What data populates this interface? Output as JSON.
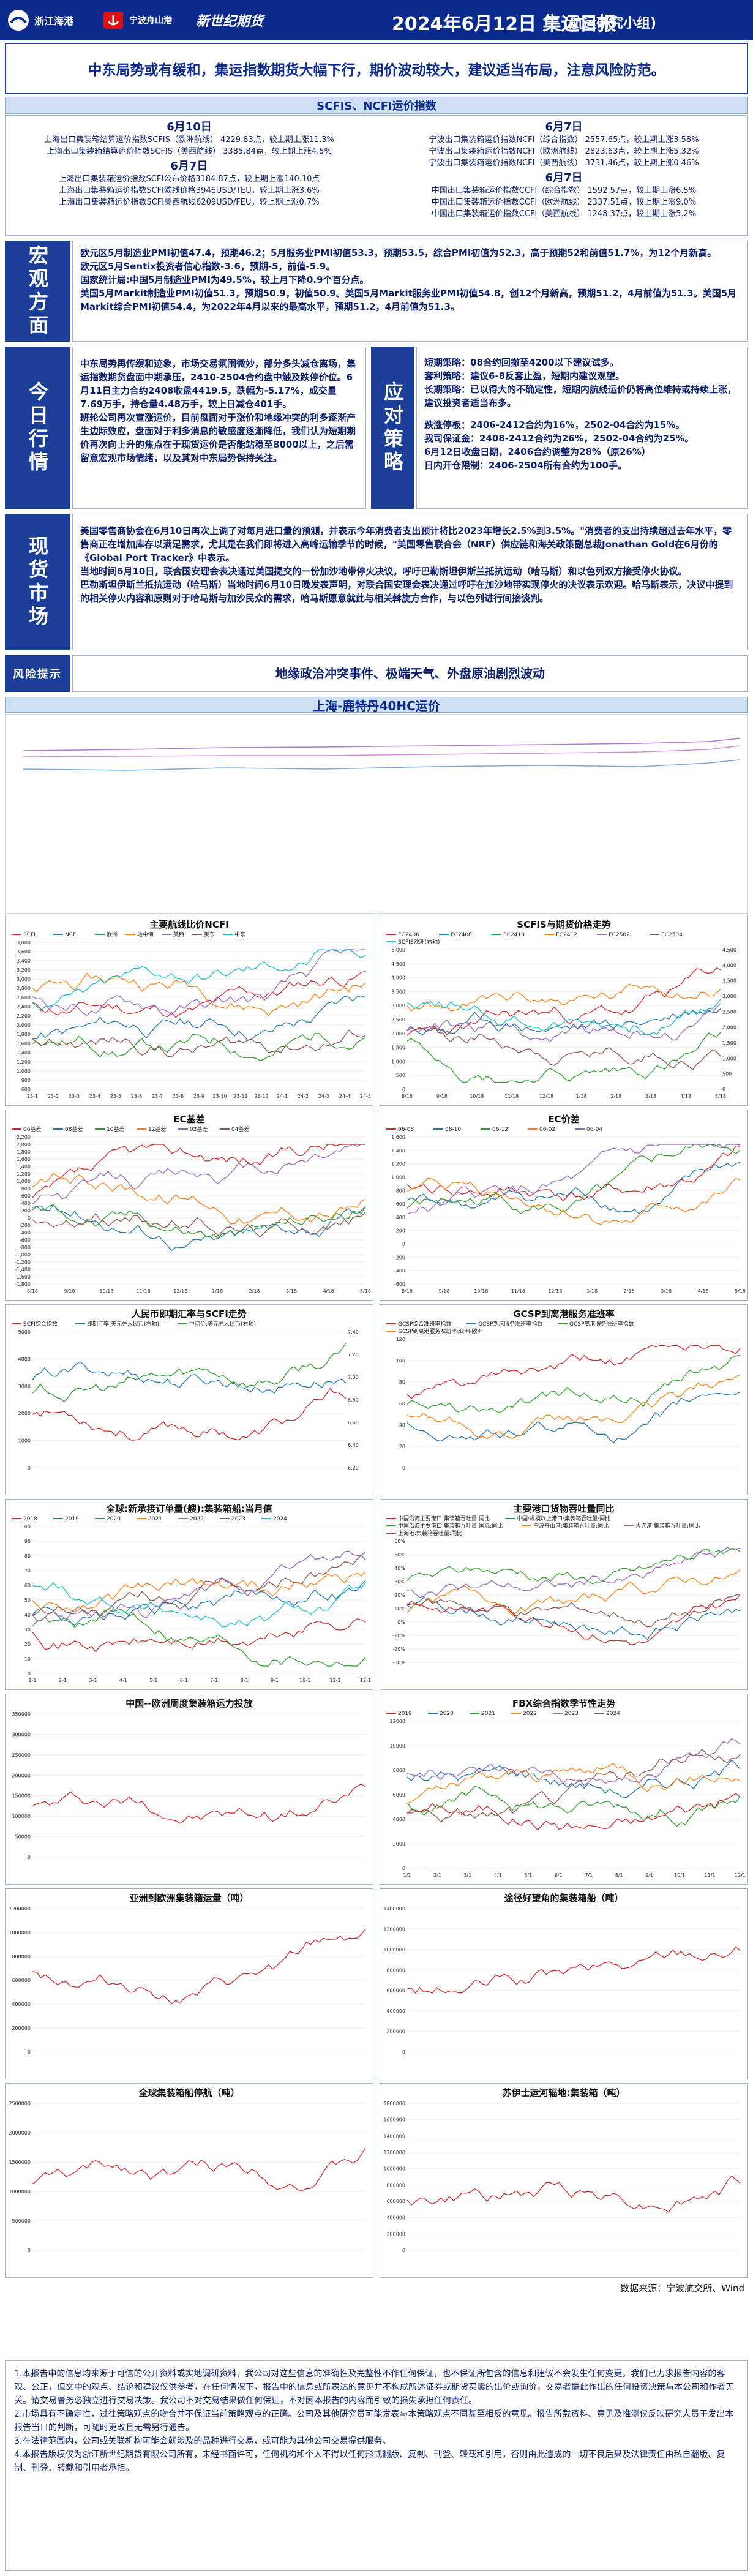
{
  "header": {
    "logo1": "浙江海港",
    "logo2": "宁波舟山港",
    "logo3": "新世纪期货",
    "title": "2024年6月12日 集运日报",
    "subtitle": "(航运研究小组)"
  },
  "headline": "中东局势或有缓和，集运指数期货大幅下行，期价波动较大，建议适当布局，注意风险防范。",
  "scfis_section": {
    "title": "SCFIS、NCFI运价指数",
    "left_date1": "6月10日",
    "left_lines1": [
      "上海出口集装箱结算运价指数SCFIS（欧洲航线） 4229.83点，较上期上涨11.3%",
      "上海出口集装箱结算运价指数SCFIS（美西航线） 3385.84点，较上期上涨4.5%"
    ],
    "left_date2": "6月7日",
    "left_lines2": [
      "上海出口集装箱运价指数SCFI公布价格3184.87点，较上期上涨140.10点",
      "上海出口集装箱运价指数SCFI欧线价格3946USD/TEU，较上期上涨3.6%",
      "上海出口集装箱运价指数SCFI美西航线6209USD/FEU，较上期上涨0.7%"
    ],
    "right_date1": "6月7日",
    "right_lines1": [
      "宁波出口集装箱运价指数NCFI（综合指数） 2557.65点，较上期上涨3.58%",
      "宁波出口集装箱运价指数NCFI（欧洲航线） 2823.63点，较上期上涨5.32%",
      "宁波出口集装箱运价指数NCFI（美西航线） 3731.46点，较上期上涨0.46%"
    ],
    "right_date2": "6月7日",
    "right_lines2": [
      "中国出口集装箱运价指数CCFI（综合指数） 1592.57点，较上期上涨6.5%",
      "中国出口集装箱运价指数CCFI（欧洲航线） 2337.51点，较上期上涨9.0%",
      "中国出口集装箱运价指数CCFI（美西航线） 1248.37点，较上期上涨5.2%"
    ]
  },
  "macro": {
    "label": "宏观方面",
    "lines": [
      "欧元区5月制造业PMI初值47.4，预期46.2；5月服务业PMI初值53.3，预期53.5，综合PMI初值为52.3，高于预期52和前值51.7%，为12个月新高。",
      "欧元区5月Sentix投资者信心指数-3.6，预期-5，前值-5.9。",
      "国家统计局:中国5月制造业PMI为49.5%，较上月下降0.9个百分点。",
      "美国5月Markit制造业PMI初值51.3，预期50.9，初值50.9。美国5月Markit服务业PMI初值54.8，创12个月新高，预期51.2，4月前值为51.3。美国5月Markit综合PMI初值54.4，为2022年4月以来的最高水平，预期51.2，4月前值为51.3。"
    ]
  },
  "today": {
    "label": "今日行情",
    "text": "中东局势再传缓和迹象，市场交易氛围微妙，部分多头减仓离场，集运指数期货盘面中期承压，2410-2504合约盘中触及跌停价位。6月11日主力合约2408收盘4419.5，跌幅为-5.17%，成交量7.69万手，持仓量4.48万手，较上日减仓401手。\n班轮公司再次宣涨运价，目前盘面对于涨价和地缘冲突的利多逐渐产生边际效应，盘面对于利多消息的敏感度逐渐降低，我们认为短期期价再次向上升的焦点在于现货运价是否能站稳至8000以上，之后需留意宏观市场情绪，以及其对中东局势保持关注。"
  },
  "strategy": {
    "label": "应对策略",
    "lines": [
      "短期策略：08合约回撤至4200以下建议试多。",
      "套利策略：建议6-8反套止盈，短期内建议观望。",
      "长期策略：已以得大的不确定性，短期内航线运价仍将高位维持或持续上涨，建议投资者适当布多。",
      "",
      "跌涨停板：2406-2412合约为16%，2502-04合约为15%。",
      "我司保证金：2408-2412合约为26%，2502-04合约为25%。",
      "6月12日收盘日期，2406合约调整为28%（原26%）",
      "日内开仓限制：2406-2504所有合约为100手。"
    ]
  },
  "spot": {
    "label": "现货市场",
    "lines": [
      "美国零售商协会在6月10日再次上调了对每月进口量的预测，并表示今年消费者支出预计将比2023年增长2.5%到3.5%。\"消费者的支出持续超过去年水平，零售商正在增加库存以满足需求，尤其是在我们即将进入高峰运输季节的时候，\"美国零售联合会（NRF）供应链和海关政策副总裁Jonathan Gold在6月份的《Global Port Tracker》中表示。",
      "当地时间6月10日，联合国安理会表决通过美国提交的一份加沙地带停火决议，呼吁巴勒斯坦伊斯兰抵抗运动（哈马斯）和以色列双方接受停火协议。",
      "巴勒斯坦伊斯兰抵抗运动（哈马斯）当地时间6月10日晚发表声明，对联合国安理会表决通过呼吁在加沙地带实现停火的决议表示欢迎。哈马斯表示，决议中提到的相关停火内容和原则对于哈马斯与加沙民众的需求，哈马斯愿意就此与相关斡旋方合作，与以色列进行间接谈判。"
    ]
  },
  "risk": {
    "label": "风险提示",
    "text": "地缘政治冲突事件、极端天气、外盘原油剧烈波动"
  },
  "charts": {
    "shanghai": {
      "title": "上海-鹿特丹40HC运价"
    },
    "ncfi": {
      "title": "主要航线比价NCFI",
      "legend": [
        "SCFI",
        "NCFI",
        "欧洲",
        "地中海",
        "美西",
        "美东",
        "中东"
      ],
      "xticks": [
        "23-1",
        "23-2",
        "23-3",
        "23-4",
        "23-5",
        "23-6",
        "23-7",
        "23-8",
        "23-9",
        "23-10",
        "23-11",
        "23-12",
        "24-1",
        "24-2",
        "24-3",
        "24-4",
        "24-5"
      ],
      "yticks": [
        "3,800",
        "3,600",
        "3,400",
        "3,200",
        "3,000",
        "2,800",
        "2,600",
        "2,400",
        "2,200",
        "2,000",
        "1,800",
        "1,600",
        "1,400",
        "1,200",
        "1,000",
        "800",
        "600"
      ]
    },
    "scfis": {
      "title": "SCFIS与期货价格走势",
      "legend": [
        "EC2406",
        "EC2408",
        "EC2410",
        "EC2412",
        "EC2502",
        "EC2504",
        "SCFIS欧洲(右轴)"
      ],
      "xticks": [
        "8/18",
        "9/18",
        "10/18",
        "11/18",
        "12/18",
        "1/18",
        "2/18",
        "3/18",
        "4/18",
        "5/18"
      ],
      "yticks": [
        "5,000",
        "4,500",
        "4,000",
        "3,500",
        "3,000",
        "2,500",
        "2,000",
        "1,500",
        "1,000",
        "500",
        "0"
      ],
      "yticks2": [
        "4,500",
        "4,000",
        "3,500",
        "3,000",
        "2,500",
        "2,000",
        "1,500",
        "1,000",
        "500",
        "0"
      ]
    },
    "ecbasis": {
      "title": "EC基差",
      "legend": [
        "06基差",
        "08基差",
        "10基差",
        "12基差",
        "02基差",
        "04基差"
      ],
      "xticks": [
        "8/18",
        "9/18",
        "10/18",
        "11/18",
        "12/18",
        "1/18",
        "2/18",
        "3/18",
        "4/18",
        "5/18"
      ],
      "yticks": [
        "2,200",
        "2,000",
        "1,800",
        "1,600",
        "1,400",
        "1,200",
        "1,000",
        "800",
        "600",
        "400",
        "200",
        "0",
        "-200",
        "-400",
        "-600",
        "-800",
        "-1,000",
        "-1,200",
        "-1,400",
        "-1,600",
        "-1,800"
      ]
    },
    "ecspread": {
      "title": "EC价差",
      "legend": [
        "06-08",
        "08-10",
        "06-12",
        "06-02",
        "06-04"
      ],
      "xticks": [
        "8/18",
        "9/18",
        "10/18",
        "11/18",
        "12/18",
        "1/18",
        "2/18",
        "3/18",
        "4/18",
        "5/18"
      ],
      "yticks": [
        "1,600",
        "1,400",
        "1,200",
        "1,000",
        "800",
        "600",
        "400",
        "200",
        "0",
        "-200",
        "-400",
        "-600"
      ]
    },
    "rmb": {
      "title": "人民币即期汇率与SCFI走势",
      "legend": [
        "SCFI综合指数",
        "即期汇率:美元兑人民币(右轴)",
        "中间价:美元兑人民币(右轴)"
      ],
      "yticks": [
        "5000",
        "4000",
        "3000",
        "2000",
        "1000",
        "0"
      ],
      "yticks2": [
        "7.40",
        "7.20",
        "7.00",
        "6.80",
        "6.60",
        "6.40",
        "6.20"
      ]
    },
    "gcsp": {
      "title": "GCSP到离港服务准班率",
      "legend": [
        "GCSP综合准班率指数",
        "GCSP到港服务准班率指数",
        "GCSP离港服务准班率指数",
        "GCSP到离港服务准班率:亚洲-欧洲"
      ],
      "yticks": [
        "120",
        "100",
        "80",
        "60",
        "40",
        "20",
        "0"
      ]
    },
    "newbuild": {
      "title": "全球:新承接订单量(艘):集装箱船:当月值",
      "legend": [
        "2018",
        "2019",
        "2020",
        "2021",
        "2022",
        "2023",
        "2024"
      ],
      "xticks": [
        "1-1",
        "2-1",
        "3-1",
        "4-1",
        "5-1",
        "6-1",
        "7-1",
        "8-1",
        "9-1",
        "10-1",
        "11-1",
        "12-1"
      ],
      "yticks": [
        "100",
        "90",
        "80",
        "70",
        "60",
        "50",
        "40",
        "30",
        "20",
        "10",
        "0"
      ]
    },
    "ports": {
      "title": "主要港口货物吞吐量同比",
      "legend": [
        "中国沿海主要港口:集装箱吞吐量:同比",
        "中国:规模以上港口:集装箱吞吐量:同比",
        "中国沿海主要港口:集装箱吞吐量:国际:同比",
        "宁波舟山港:集装箱吞吐量:同比",
        "大连港:集装箱吞吐量:同比",
        "上海港:集装箱吞吐量:同比"
      ],
      "yticks": [
        "60%",
        "50%",
        "40%",
        "30%",
        "20%",
        "10%",
        "0%",
        "-10%",
        "-20%",
        "-30%"
      ]
    },
    "capacity": {
      "title": "中国--欧洲周度集装箱运力投放",
      "yticks": [
        "350000",
        "300000",
        "250000",
        "200000",
        "150000",
        "100000",
        "50000",
        "0"
      ]
    },
    "fbx": {
      "title": "FBX综合指数季节性走势",
      "legend": [
        "2019",
        "2020",
        "2021",
        "2022",
        "2023",
        "2024"
      ],
      "xticks": [
        "1/1",
        "2/1",
        "3/1",
        "4/1",
        "5/1",
        "6/1",
        "7/1",
        "8/1",
        "9/1",
        "10/1",
        "11/1",
        "12/1"
      ],
      "yticks": [
        "12000",
        "10000",
        "8000",
        "6000",
        "4000",
        "2000",
        "0"
      ]
    },
    "asiaeu": {
      "title": "亚洲到欧洲集装箱运量（吨）",
      "yticks": [
        "1200000",
        "1000000",
        "800000",
        "600000",
        "400000",
        "200000",
        "0"
      ]
    },
    "cape": {
      "title": "途径好望角的集装箱船（吨）",
      "yticks": [
        "1400000",
        "1200000",
        "1000000",
        "800000",
        "600000",
        "400000",
        "200000",
        "0"
      ]
    },
    "berth": {
      "title": "全球集装箱船停航（吨）",
      "yticks": [
        "2500000",
        "2000000",
        "1500000",
        "1000000",
        "500000",
        "0"
      ]
    },
    "suez": {
      "title": "苏伊士运河辐地:集装箱（吨）",
      "yticks": [
        "1800000",
        "1600000",
        "1400000",
        "1200000",
        "1000000",
        "800000",
        "600000",
        "400000",
        "200000",
        "0"
      ]
    }
  },
  "source": "数据来源：宁波航交所、Wind",
  "footer_lines": [
    "1.本报告中的信息均来源于可信的公开资料或实地调研资料，我公司对这些信息的准确性及完整性不作任何保证，也不保证所包含的信息和建议不会发生任何变更。我们已力求报告内容的客观、公正，但文中的观点、结论和建议仅供参考，在任何情况下，报告中的信息或所表达的意见并不构成所述证券或期货买卖的出价或询价，交易者据此作出的任何投资决策与本公司和作者无关。请交易者务必独立进行交易决策。我公司不对交易结果做任何保证，不对因本报告的内容而引致的损失承担任何责任。",
    "2.市场具有不确定性，过往策略观点的吻合并不保证当前策略观点的正确。公司及其他研究员可能发表与本策略观点不同甚至相反的意见。报告所载资料、意见及推测仅反映研究人员于发出本报告当日的判断，可随时更改且无需另行通告。",
    "3.在法律范围内，公司或关联机构可能会就涉及的品种进行交易，或可能为其他公司交易提供服务。",
    "4.本报告版权仅为浙江新世纪期货有限公司所有，未经书面许可，任何机构和个人不得以任何形式翻版、复制、刊登、转载和引用，否则由此造成的一切不良后果及法律责任由私自翻版、复制、刊登、转载和引用者承担。"
  ]
}
